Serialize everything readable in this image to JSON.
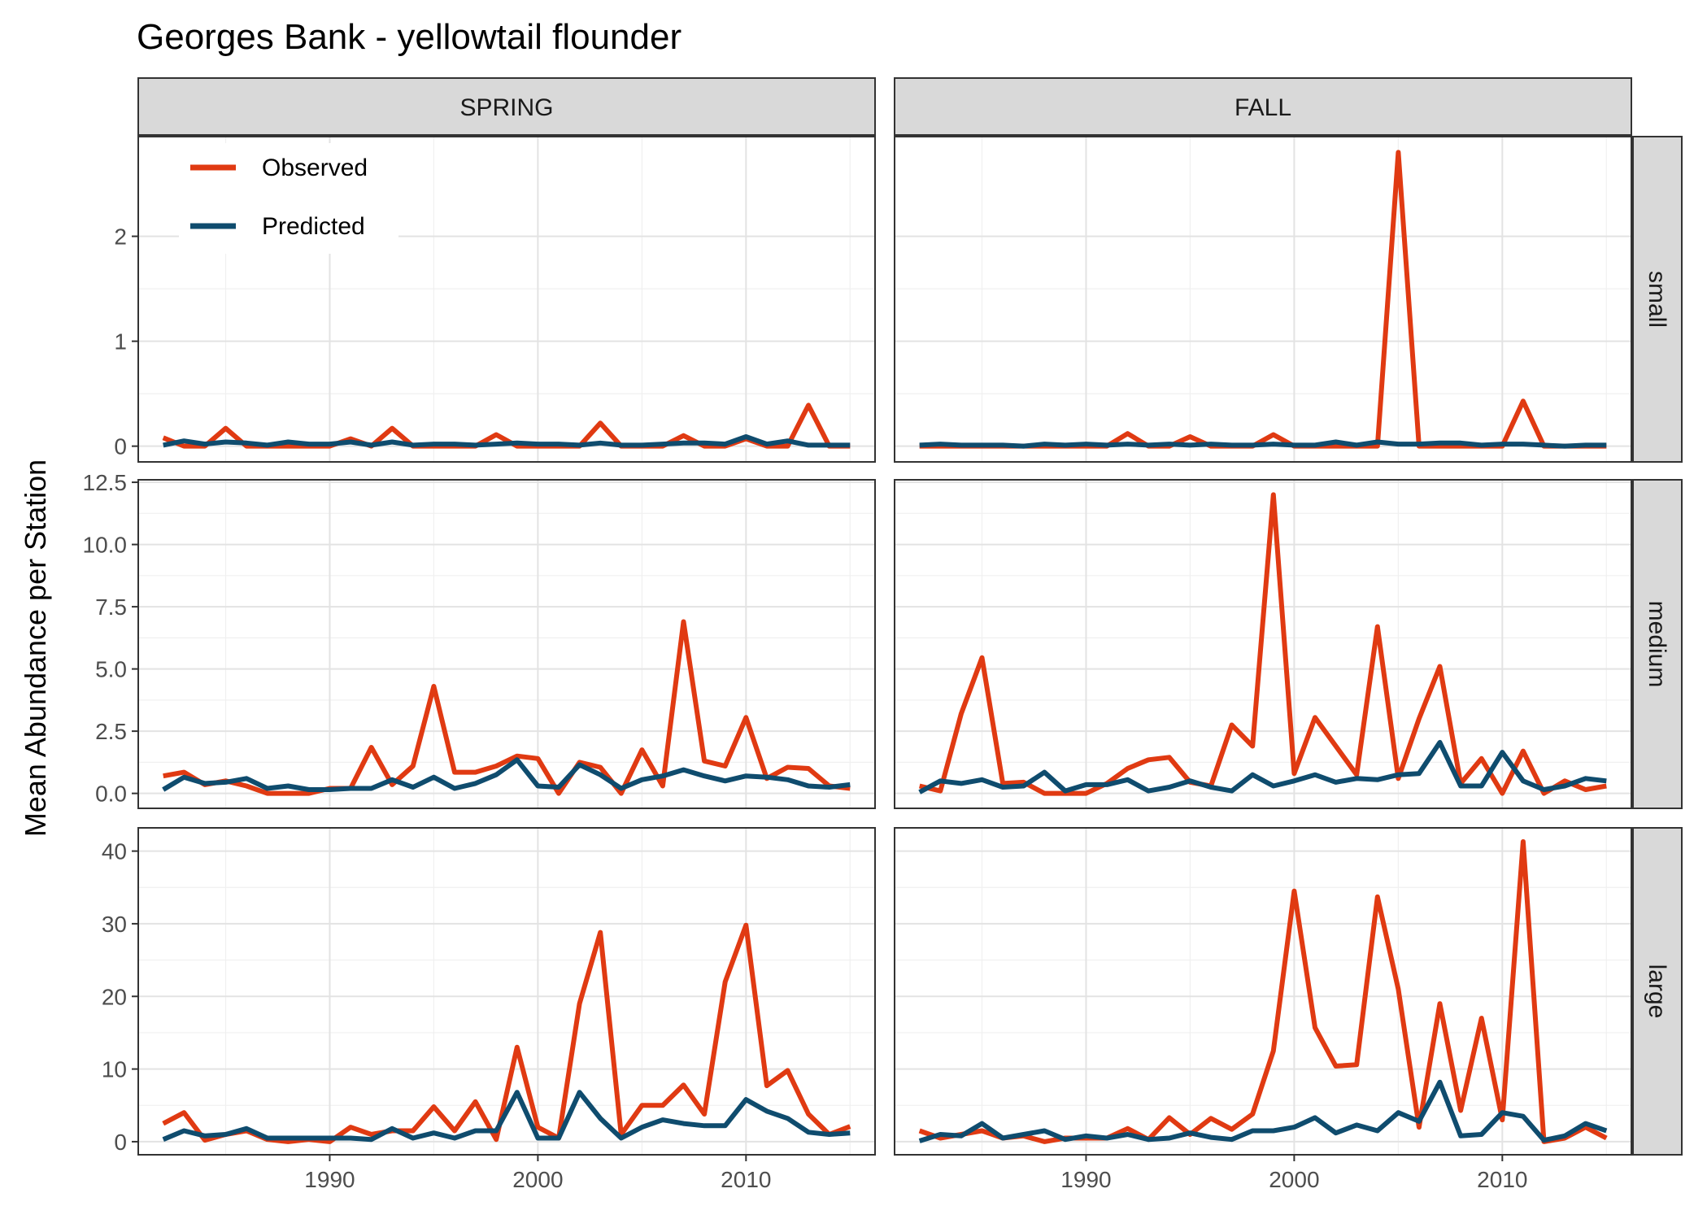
{
  "chart_data": {
    "type": "line",
    "title": "Georges Bank - yellowtail flounder",
    "ylabel": "Mean Abundance per Station",
    "xlabel": "",
    "grid": true,
    "legend_position": "top-left",
    "col_facets": [
      "SPRING",
      "FALL"
    ],
    "row_facets": [
      "small",
      "medium",
      "large"
    ],
    "x_ticks": [
      1990,
      2000,
      2010
    ],
    "x_range": [
      1980.8,
      2016.2
    ],
    "colors": {
      "Observed": "#e03a12",
      "Predicted": "#0f4c6e"
    },
    "legend": [
      "Observed",
      "Predicted"
    ],
    "rows": [
      {
        "name": "small",
        "ylim": [
          -0.15,
          2.95
        ],
        "y_ticks": [
          0,
          1,
          2
        ],
        "y_tick_labels": [
          "0",
          "1",
          "2"
        ]
      },
      {
        "name": "medium",
        "ylim": [
          -0.6,
          12.6
        ],
        "y_ticks": [
          0,
          2.5,
          5,
          7.5,
          10,
          12.5
        ],
        "y_tick_labels": [
          "0.0",
          "2.5",
          "5.0",
          "7.5",
          "10.0",
          "12.5"
        ]
      },
      {
        "name": "large",
        "ylim": [
          -1.8,
          43.2
        ],
        "y_ticks": [
          0,
          10,
          20,
          30,
          40
        ],
        "y_tick_labels": [
          "0",
          "10",
          "20",
          "30",
          "40"
        ]
      }
    ],
    "years": [
      1982,
      1983,
      1984,
      1985,
      1986,
      1987,
      1988,
      1989,
      1990,
      1991,
      1992,
      1993,
      1994,
      1995,
      1996,
      1997,
      1998,
      1999,
      2000,
      2001,
      2002,
      2003,
      2004,
      2005,
      2006,
      2007,
      2008,
      2009,
      2010,
      2011,
      2012,
      2013,
      2014,
      2015
    ],
    "panels": [
      {
        "row": "small",
        "col": "SPRING",
        "observed": [
          0.08,
          0.0,
          0.0,
          0.17,
          0.0,
          0.0,
          0.0,
          0.0,
          0.0,
          0.07,
          0.0,
          0.17,
          0.0,
          0.0,
          0.0,
          0.0,
          0.11,
          0.0,
          0.0,
          0.0,
          0.0,
          0.22,
          0.0,
          0.0,
          0.0,
          0.1,
          0.0,
          0.0,
          0.07,
          0.0,
          0.0,
          0.39,
          0.0,
          0.0
        ],
        "predicted": [
          0.01,
          0.05,
          0.02,
          0.04,
          0.03,
          0.01,
          0.04,
          0.02,
          0.02,
          0.04,
          0.01,
          0.04,
          0.01,
          0.02,
          0.02,
          0.01,
          0.02,
          0.03,
          0.02,
          0.02,
          0.01,
          0.03,
          0.01,
          0.01,
          0.02,
          0.03,
          0.03,
          0.02,
          0.09,
          0.02,
          0.05,
          0.01,
          0.01,
          0.01
        ]
      },
      {
        "row": "small",
        "col": "FALL",
        "observed": [
          0.0,
          0.0,
          0.0,
          0.0,
          0.0,
          0.0,
          0.0,
          0.0,
          0.0,
          0.0,
          0.12,
          0.0,
          0.0,
          0.09,
          0.0,
          0.0,
          0.0,
          0.11,
          0.0,
          0.0,
          0.0,
          0.0,
          0.0,
          2.8,
          0.0,
          0.0,
          0.0,
          0.0,
          0.0,
          0.43,
          0.0,
          0.0,
          0.0,
          0.0
        ],
        "predicted": [
          0.01,
          0.02,
          0.01,
          0.01,
          0.01,
          0.0,
          0.02,
          0.01,
          0.02,
          0.01,
          0.02,
          0.01,
          0.02,
          0.01,
          0.02,
          0.01,
          0.01,
          0.02,
          0.01,
          0.01,
          0.04,
          0.01,
          0.04,
          0.02,
          0.02,
          0.03,
          0.03,
          0.01,
          0.02,
          0.02,
          0.01,
          0.0,
          0.01,
          0.01
        ]
      },
      {
        "row": "medium",
        "col": "SPRING",
        "observed": [
          0.7,
          0.85,
          0.35,
          0.5,
          0.3,
          0.0,
          0.0,
          0.0,
          0.2,
          0.2,
          1.85,
          0.35,
          1.1,
          4.3,
          0.85,
          0.85,
          1.1,
          1.5,
          1.4,
          0.0,
          1.25,
          1.05,
          0.0,
          1.75,
          0.3,
          6.9,
          1.3,
          1.1,
          3.05,
          0.6,
          1.05,
          1.0,
          0.3,
          0.2
        ],
        "predicted": [
          0.15,
          0.65,
          0.4,
          0.45,
          0.6,
          0.2,
          0.3,
          0.15,
          0.15,
          0.2,
          0.2,
          0.55,
          0.25,
          0.65,
          0.2,
          0.4,
          0.75,
          1.35,
          0.3,
          0.25,
          1.15,
          0.75,
          0.2,
          0.55,
          0.7,
          0.95,
          0.7,
          0.5,
          0.7,
          0.65,
          0.55,
          0.3,
          0.25,
          0.35
        ]
      },
      {
        "row": "medium",
        "col": "FALL",
        "observed": [
          0.3,
          0.1,
          3.2,
          5.45,
          0.4,
          0.45,
          0.0,
          0.0,
          0.0,
          0.4,
          1.0,
          1.35,
          1.45,
          0.45,
          0.3,
          2.75,
          1.9,
          12.0,
          0.8,
          3.05,
          1.9,
          0.75,
          6.7,
          0.6,
          3.0,
          5.1,
          0.4,
          1.4,
          0.0,
          1.7,
          0.0,
          0.5,
          0.15,
          0.3
        ],
        "predicted": [
          0.05,
          0.5,
          0.4,
          0.55,
          0.25,
          0.3,
          0.85,
          0.1,
          0.35,
          0.35,
          0.55,
          0.1,
          0.25,
          0.5,
          0.25,
          0.1,
          0.75,
          0.3,
          0.5,
          0.75,
          0.45,
          0.6,
          0.55,
          0.75,
          0.8,
          2.05,
          0.3,
          0.3,
          1.65,
          0.5,
          0.15,
          0.3,
          0.6,
          0.5
        ]
      },
      {
        "row": "large",
        "col": "SPRING",
        "observed": [
          2.5,
          4.0,
          0.2,
          1.0,
          1.5,
          0.3,
          0.0,
          0.3,
          0.0,
          2.0,
          1.0,
          1.5,
          1.5,
          4.8,
          1.5,
          5.5,
          0.3,
          13.0,
          2.0,
          0.5,
          19.0,
          28.8,
          1.0,
          5.0,
          5.0,
          7.8,
          3.8,
          22.0,
          29.8,
          7.7,
          9.8,
          3.8,
          1.0,
          2.1
        ],
        "predicted": [
          0.3,
          1.5,
          0.8,
          1.0,
          1.8,
          0.5,
          0.5,
          0.5,
          0.5,
          0.5,
          0.3,
          1.8,
          0.5,
          1.2,
          0.5,
          1.5,
          1.5,
          6.8,
          0.5,
          0.5,
          6.8,
          3.2,
          0.5,
          2.0,
          3.0,
          2.5,
          2.2,
          2.2,
          5.8,
          4.2,
          3.2,
          1.3,
          1.0,
          1.2
        ]
      },
      {
        "row": "large",
        "col": "FALL",
        "observed": [
          1.5,
          0.5,
          1.0,
          1.5,
          0.5,
          0.8,
          0.0,
          0.5,
          0.5,
          0.5,
          1.8,
          0.3,
          3.3,
          1.0,
          3.2,
          1.7,
          3.8,
          12.5,
          34.5,
          15.7,
          10.4,
          10.6,
          33.7,
          21.0,
          2.0,
          19.0,
          4.3,
          17.0,
          3.0,
          41.3,
          0.0,
          0.5,
          2.0,
          0.5
        ],
        "predicted": [
          0.1,
          1.0,
          0.8,
          2.5,
          0.5,
          1.0,
          1.5,
          0.3,
          0.8,
          0.5,
          1.0,
          0.3,
          0.5,
          1.2,
          0.6,
          0.3,
          1.5,
          1.5,
          2.0,
          3.3,
          1.2,
          2.3,
          1.5,
          4.0,
          2.8,
          8.2,
          0.8,
          1.0,
          4.0,
          3.5,
          0.2,
          0.8,
          2.5,
          1.5
        ]
      }
    ]
  }
}
